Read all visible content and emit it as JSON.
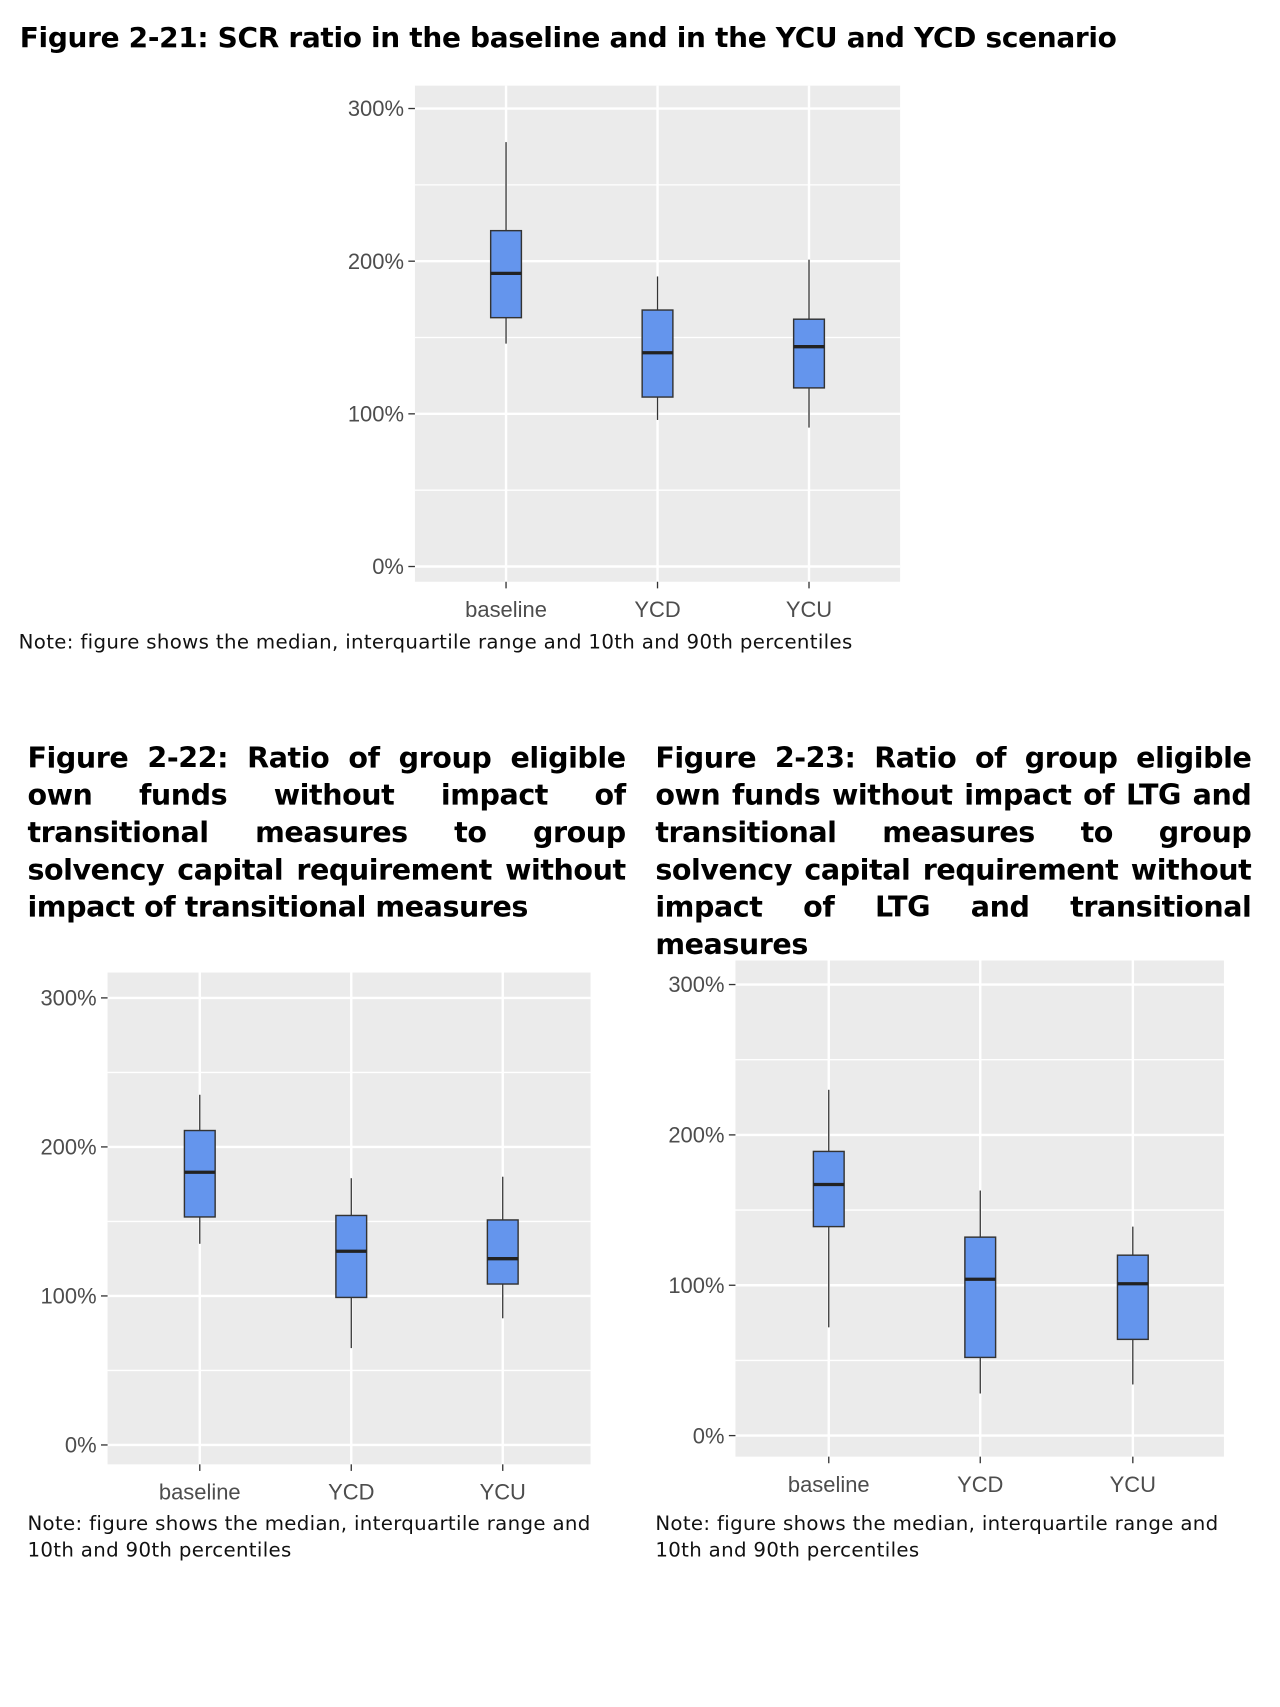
{
  "figures": [
    {
      "title": "Figure 2-21: SCR ratio in the baseline and in the YCU and YCD scenario",
      "note": "Note: figure shows the median, interquartile range and 10th and 90th percentiles"
    },
    {
      "title": "Figure 2-22: Ratio of group eligible own funds without impact of transitional measures to group solvency capital requirement without impact of transitional measures",
      "note": "Note: figure shows the median, interquartile range and 10th and 90th percentiles"
    },
    {
      "title": "Figure 2-23: Ratio of group eligible own funds without impact of LTG and transitional measures to group solvency capital requirement without impact of LTG and transitional measures",
      "note": "Note: figure shows the median, interquartile range and 10th and 90th percentiles"
    }
  ],
  "colors": {
    "box_fill": "#6495ed",
    "panel_bg": "#ebebeb",
    "grid": "#ffffff",
    "box_stroke": "#333333"
  },
  "chart_data": [
    {
      "type": "boxplot",
      "categories": [
        "baseline",
        "YCD",
        "YCU"
      ],
      "ylim": [
        -10,
        315
      ],
      "yticks": [
        0,
        100,
        200,
        300
      ],
      "ytick_labels": [
        "0%",
        "100%",
        "200%",
        "300%"
      ],
      "grid": true,
      "unit": "%",
      "series": [
        {
          "p10": 146,
          "q1": 163,
          "median": 192,
          "q3": 220,
          "p90": 278
        },
        {
          "p10": 96,
          "q1": 111,
          "median": 140,
          "q3": 168,
          "p90": 190
        },
        {
          "p10": 91,
          "q1": 117,
          "median": 144,
          "q3": 162,
          "p90": 201
        }
      ]
    },
    {
      "type": "boxplot",
      "categories": [
        "baseline",
        "YCD",
        "YCU"
      ],
      "ylim": [
        -13,
        317
      ],
      "yticks": [
        0,
        100,
        200,
        300
      ],
      "ytick_labels": [
        "0%",
        "100%",
        "200%",
        "300%"
      ],
      "grid": true,
      "unit": "%",
      "series": [
        {
          "p10": 135,
          "q1": 153,
          "median": 183,
          "q3": 211,
          "p90": 235
        },
        {
          "p10": 65,
          "q1": 99,
          "median": 130,
          "q3": 154,
          "p90": 179
        },
        {
          "p10": 85,
          "q1": 108,
          "median": 125,
          "q3": 151,
          "p90": 180
        }
      ]
    },
    {
      "type": "boxplot",
      "categories": [
        "baseline",
        "YCD",
        "YCU"
      ],
      "ylim": [
        -14,
        316
      ],
      "yticks": [
        0,
        100,
        200,
        300
      ],
      "ytick_labels": [
        "0%",
        "100%",
        "200%",
        "300%"
      ],
      "grid": true,
      "unit": "%",
      "series": [
        {
          "p10": 72,
          "q1": 139,
          "median": 167,
          "q3": 189,
          "p90": 230
        },
        {
          "p10": 28,
          "q1": 52,
          "median": 104,
          "q3": 132,
          "p90": 163
        },
        {
          "p10": 34,
          "q1": 64,
          "median": 101,
          "q3": 120,
          "p90": 139
        }
      ]
    }
  ]
}
